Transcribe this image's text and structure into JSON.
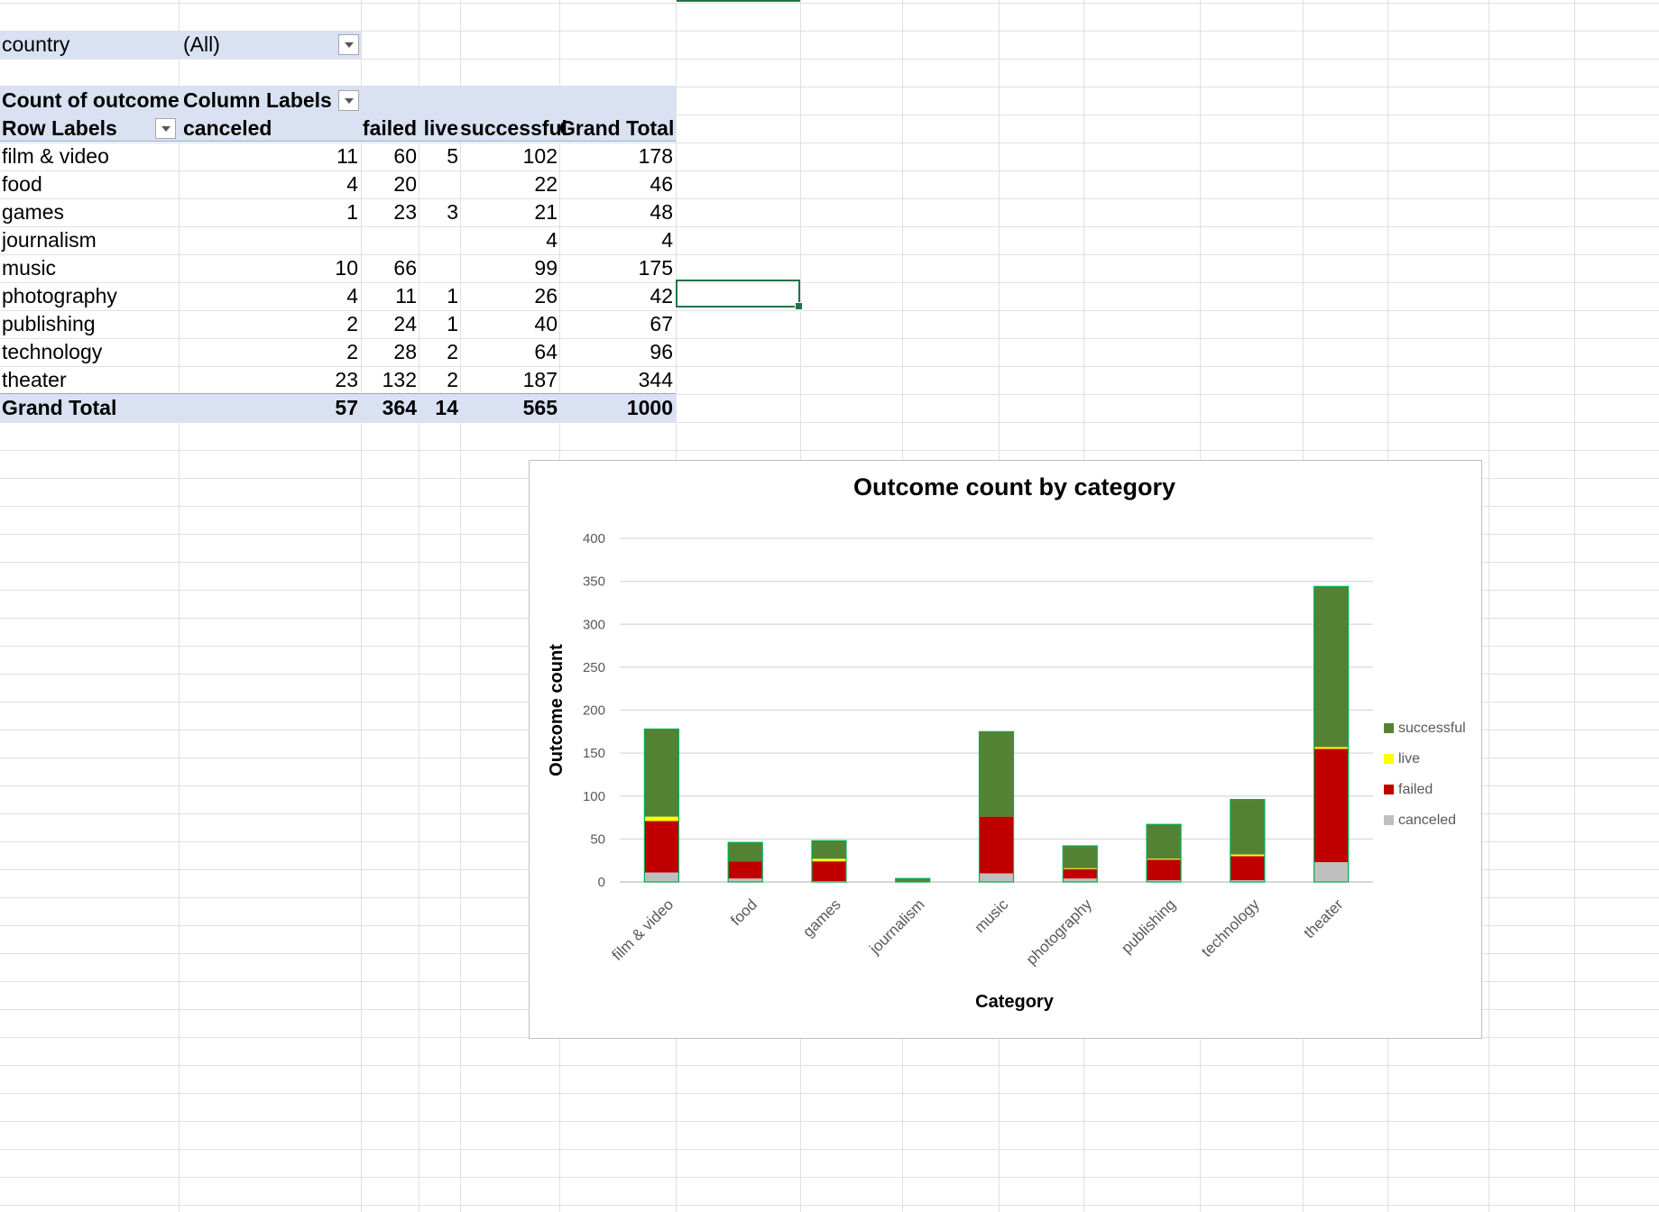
{
  "filter": {
    "label": "country",
    "value": "(All)"
  },
  "pivot": {
    "corner_label": "Count of outcome",
    "column_labels": "Column Labels",
    "row_labels": "Row Labels",
    "columns": [
      "canceled",
      "failed",
      "live",
      "successful",
      "Grand Total"
    ],
    "rows": [
      {
        "label": "film & video",
        "values": [
          "11",
          "60",
          "5",
          "102",
          "178"
        ]
      },
      {
        "label": "food",
        "values": [
          "4",
          "20",
          "",
          "22",
          "46"
        ]
      },
      {
        "label": "games",
        "values": [
          "1",
          "23",
          "3",
          "21",
          "48"
        ]
      },
      {
        "label": "journalism",
        "values": [
          "",
          "",
          "",
          "4",
          "4"
        ]
      },
      {
        "label": "music",
        "values": [
          "10",
          "66",
          "",
          "99",
          "175"
        ]
      },
      {
        "label": "photography",
        "values": [
          "4",
          "11",
          "1",
          "26",
          "42"
        ]
      },
      {
        "label": "publishing",
        "values": [
          "2",
          "24",
          "1",
          "40",
          "67"
        ]
      },
      {
        "label": "technology",
        "values": [
          "2",
          "28",
          "2",
          "64",
          "96"
        ]
      },
      {
        "label": "theater",
        "values": [
          "23",
          "132",
          "2",
          "187",
          "344"
        ]
      }
    ],
    "grand_total": {
      "label": "Grand Total",
      "values": [
        "57",
        "364",
        "14",
        "565",
        "1000"
      ]
    }
  },
  "chart_data": {
    "type": "bar",
    "stacked": true,
    "title": "Outcome count by category",
    "xlabel": "Category",
    "ylabel": "Outcome count",
    "ylim": [
      0,
      400
    ],
    "yticks": [
      0,
      50,
      100,
      150,
      200,
      250,
      300,
      350,
      400
    ],
    "grid": true,
    "legend_position": "right",
    "categories": [
      "film & video",
      "food",
      "games",
      "journalism",
      "music",
      "photography",
      "publishing",
      "technology",
      "theater"
    ],
    "series": [
      {
        "name": "canceled",
        "color": "#bfbfbf",
        "values": [
          11,
          4,
          1,
          0,
          10,
          4,
          2,
          2,
          23
        ]
      },
      {
        "name": "failed",
        "color": "#c00000",
        "values": [
          60,
          20,
          23,
          0,
          66,
          11,
          24,
          28,
          132
        ]
      },
      {
        "name": "live",
        "color": "#ffff00",
        "values": [
          5,
          0,
          3,
          0,
          0,
          1,
          1,
          2,
          2
        ]
      },
      {
        "name": "successful",
        "color": "#548235",
        "values": [
          102,
          22,
          21,
          4,
          99,
          26,
          40,
          64,
          187
        ]
      }
    ],
    "legend_order": [
      "successful",
      "live",
      "failed",
      "canceled"
    ],
    "bar_outline_color": "#00b050"
  }
}
